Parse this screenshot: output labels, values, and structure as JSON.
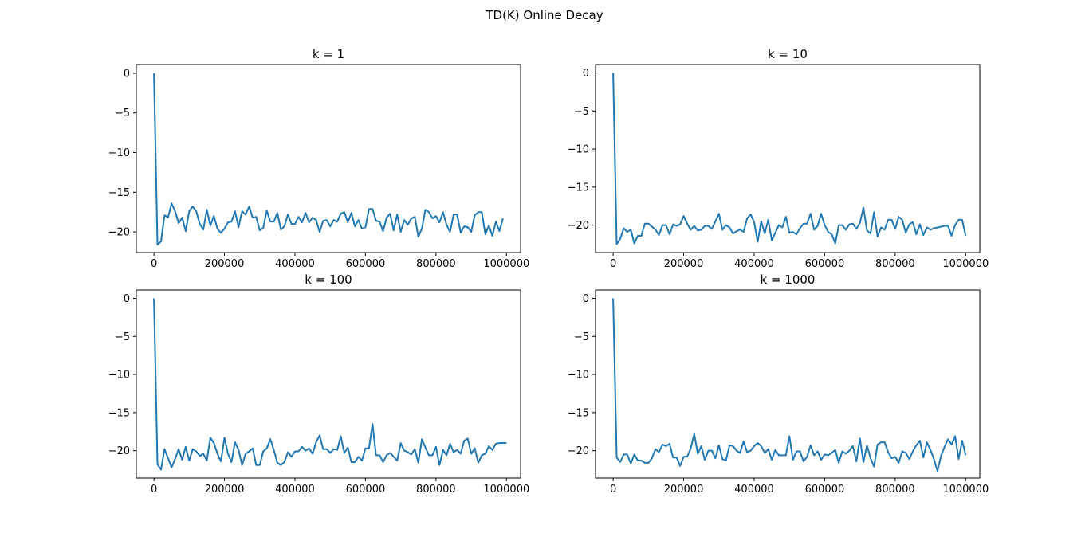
{
  "figure": {
    "title": "TD(K) Online Decay",
    "line_color": "#1f77b4"
  },
  "chart_data": [
    {
      "type": "line",
      "title": "k = 1",
      "xlabel": "",
      "ylabel": "",
      "xlim": [
        -50000,
        1040000
      ],
      "ylim": [
        -22.6,
        1.1
      ],
      "xticks": [
        0,
        200000,
        400000,
        600000,
        800000,
        1000000
      ],
      "xtick_labels": [
        "0",
        "200000",
        "400000",
        "600000",
        "800000",
        "1000000"
      ],
      "yticks": [
        0,
        -5,
        -10,
        -15,
        -20
      ],
      "ytick_labels": [
        "0",
        "−5",
        "−10",
        "−15",
        "−20"
      ],
      "grid": false,
      "legend": "none",
      "x_start": 0,
      "x_step": 10000,
      "y": [
        0,
        -21.6,
        -21.2,
        -17.9,
        -18.2,
        -16.4,
        -17.4,
        -18.9,
        -18.2,
        -19.9,
        -17.4,
        -16.8,
        -17.4,
        -19.0,
        -19.7,
        -17.2,
        -19.2,
        -18.0,
        -19.6,
        -20.1,
        -19.6,
        -18.8,
        -18.7,
        -17.4,
        -19.4,
        -17.4,
        -17.8,
        -16.8,
        -18.2,
        -18.1,
        -19.8,
        -19.5,
        -17.3,
        -18.7,
        -18.7,
        -17.6,
        -19.7,
        -19.3,
        -17.8,
        -19.0,
        -19.0,
        -18.1,
        -18.8,
        -17.6,
        -18.8,
        -18.2,
        -18.5,
        -20.0,
        -18.6,
        -18.5,
        -19.3,
        -18.5,
        -18.7,
        -17.7,
        -17.5,
        -18.8,
        -17.6,
        -19.3,
        -18.5,
        -19.6,
        -19.4,
        -17.1,
        -17.1,
        -18.6,
        -18.7,
        -19.9,
        -18.2,
        -17.7,
        -19.8,
        -17.8,
        -20.0,
        -18.5,
        -19.1,
        -18.3,
        -18.1,
        -20.6,
        -19.6,
        -17.2,
        -17.5,
        -18.3,
        -18.0,
        -18.8,
        -17.5,
        -19.1,
        -20.0,
        -17.8,
        -17.8,
        -20.1,
        -19.3,
        -19.4,
        -20.0,
        -17.9,
        -17.5,
        -17.5,
        -20.3,
        -19.2,
        -20.5,
        -18.7,
        -19.9,
        -18.3
      ]
    },
    {
      "type": "line",
      "title": "k = 10",
      "xlabel": "",
      "ylabel": "",
      "xlim": [
        -50000,
        1040000
      ],
      "ylim": [
        -23.6,
        1.1
      ],
      "xticks": [
        0,
        200000,
        400000,
        600000,
        800000,
        1000000
      ],
      "xtick_labels": [
        "0",
        "200000",
        "400000",
        "600000",
        "800000",
        "1000000"
      ],
      "yticks": [
        0,
        -5,
        -10,
        -15,
        -20
      ],
      "ytick_labels": [
        "0",
        "−5",
        "−10",
        "−15",
        "−20"
      ],
      "grid": false,
      "legend": "none",
      "x_start": 0,
      "x_step": 10000,
      "y": [
        0,
        -22.5,
        -21.8,
        -20.4,
        -20.9,
        -20.6,
        -22.4,
        -21.4,
        -21.4,
        -19.8,
        -19.8,
        -20.2,
        -20.6,
        -21.3,
        -20.0,
        -20.0,
        -21.2,
        -19.9,
        -20.1,
        -19.9,
        -18.8,
        -19.8,
        -20.6,
        -20.1,
        -20.7,
        -20.6,
        -20.1,
        -20.1,
        -20.5,
        -19.5,
        -18.5,
        -20.6,
        -20.0,
        -20.3,
        -21.1,
        -20.8,
        -20.6,
        -20.9,
        -19.1,
        -18.6,
        -19.6,
        -22.2,
        -19.5,
        -21.1,
        -19.3,
        -22.0,
        -21.0,
        -20.0,
        -20.3,
        -18.9,
        -21.0,
        -20.9,
        -21.2,
        -20.4,
        -19.8,
        -19.8,
        -18.5,
        -20.6,
        -20.1,
        -18.5,
        -20.0,
        -20.9,
        -21.2,
        -22.4,
        -20.0,
        -20.0,
        -20.6,
        -19.9,
        -19.8,
        -20.5,
        -19.7,
        -17.7,
        -20.7,
        -21.1,
        -18.3,
        -21.5,
        -20.3,
        -20.6,
        -19.3,
        -19.3,
        -20.5,
        -18.9,
        -19.3,
        -21.0,
        -19.9,
        -19.6,
        -21.2,
        -19.9,
        -21.3,
        -20.3,
        -20.6,
        -20.4,
        -20.3,
        -20.2,
        -20.1,
        -20.1,
        -21.4,
        -20.0,
        -19.3,
        -19.3,
        -21.4
      ]
    },
    {
      "type": "line",
      "title": "k = 100",
      "xlabel": "",
      "ylabel": "",
      "xlim": [
        -50000,
        1040000
      ],
      "ylim": [
        -23.6,
        1.1
      ],
      "xticks": [
        0,
        200000,
        400000,
        600000,
        800000,
        1000000
      ],
      "xtick_labels": [
        "0",
        "200000",
        "400000",
        "600000",
        "800000",
        "1000000"
      ],
      "yticks": [
        0,
        -5,
        -10,
        -15,
        -20
      ],
      "ytick_labels": [
        "0",
        "−5",
        "−10",
        "−15",
        "−20"
      ],
      "grid": false,
      "legend": "none",
      "x_start": 0,
      "x_step": 10000,
      "y": [
        0,
        -21.8,
        -22.5,
        -19.8,
        -21.0,
        -22.2,
        -21.1,
        -19.8,
        -21.2,
        -19.5,
        -21.3,
        -19.8,
        -20.1,
        -20.7,
        -20.4,
        -21.3,
        -18.3,
        -19.0,
        -20.4,
        -21.4,
        -18.3,
        -20.4,
        -21.5,
        -18.9,
        -19.9,
        -21.9,
        -20.4,
        -20.1,
        -19.7,
        -21.9,
        -21.9,
        -20.1,
        -19.7,
        -18.5,
        -19.9,
        -21.6,
        -21.9,
        -21.5,
        -20.2,
        -20.8,
        -20.1,
        -20.1,
        -19.5,
        -20.0,
        -19.7,
        -20.4,
        -18.9,
        -18.0,
        -19.8,
        -19.8,
        -20.3,
        -19.8,
        -19.9,
        -18.1,
        -20.3,
        -19.6,
        -21.5,
        -21.5,
        -20.8,
        -21.3,
        -19.7,
        -19.7,
        -16.5,
        -20.6,
        -20.6,
        -21.5,
        -20.6,
        -20.3,
        -20.8,
        -21.3,
        -19.0,
        -20.0,
        -20.2,
        -20.5,
        -19.8,
        -21.6,
        -18.5,
        -19.6,
        -20.6,
        -20.6,
        -19.5,
        -21.9,
        -19.9,
        -20.6,
        -19.1,
        -20.2,
        -19.9,
        -20.4,
        -18.7,
        -18.4,
        -20.4,
        -19.7,
        -21.6,
        -20.6,
        -20.4,
        -19.4,
        -19.9,
        -19.1,
        -19.0,
        -19.0,
        -19.0
      ]
    },
    {
      "type": "line",
      "title": "k = 1000",
      "xlabel": "",
      "ylabel": "",
      "xlim": [
        -50000,
        1040000
      ],
      "ylim": [
        -23.6,
        1.1
      ],
      "xticks": [
        0,
        200000,
        400000,
        600000,
        800000,
        1000000
      ],
      "xtick_labels": [
        "0",
        "200000",
        "400000",
        "600000",
        "800000",
        "1000000"
      ],
      "yticks": [
        0,
        -5,
        -10,
        -15,
        -20
      ],
      "ytick_labels": [
        "0",
        "−5",
        "−10",
        "−15",
        "−20"
      ],
      "grid": false,
      "legend": "none",
      "x_start": 0,
      "x_step": 10000,
      "y": [
        0,
        -20.9,
        -21.5,
        -20.5,
        -20.5,
        -21.7,
        -20.5,
        -21.3,
        -21.3,
        -21.6,
        -21.6,
        -21.0,
        -19.8,
        -20.2,
        -19.2,
        -19.4,
        -19.1,
        -20.9,
        -20.9,
        -22.0,
        -20.8,
        -20.8,
        -19.7,
        -17.8,
        -20.4,
        -19.4,
        -21.2,
        -20.0,
        -20.0,
        -21.0,
        -19.3,
        -21.1,
        -21.3,
        -19.3,
        -19.4,
        -20.0,
        -20.3,
        -18.8,
        -20.2,
        -20.0,
        -19.4,
        -19.0,
        -19.4,
        -20.3,
        -19.8,
        -21.2,
        -19.9,
        -20.6,
        -20.6,
        -20.6,
        -18.1,
        -21.2,
        -20.1,
        -20.1,
        -21.4,
        -20.8,
        -19.3,
        -20.6,
        -20.1,
        -21.2,
        -20.5,
        -20.6,
        -20.3,
        -19.9,
        -21.6,
        -20.1,
        -20.4,
        -20.0,
        -19.4,
        -21.4,
        -18.4,
        -21.5,
        -19.3,
        -21.0,
        -22.1,
        -19.2,
        -18.9,
        -18.9,
        -20.2,
        -21.0,
        -20.8,
        -21.6,
        -20.1,
        -20.3,
        -21.1,
        -20.1,
        -19.3,
        -18.7,
        -20.9,
        -18.9,
        -19.9,
        -21.1,
        -22.7,
        -20.7,
        -19.5,
        -18.5,
        -19.2,
        -18.1,
        -21.1,
        -18.7,
        -20.6
      ]
    }
  ]
}
